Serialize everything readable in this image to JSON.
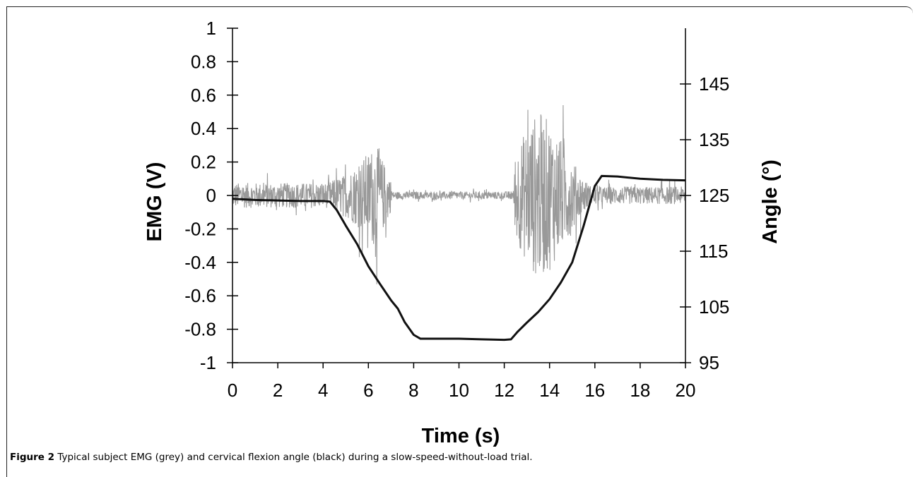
{
  "caption": {
    "label": "Figure 2",
    "text": " Typical subject EMG (grey) and cervical flexion angle (black) during a slow-speed-without-load trial."
  },
  "chart_data": {
    "type": "line",
    "title": "",
    "xlabel": "Time (s)",
    "ylabel": "EMG (V)",
    "y2label": "Angle (°)",
    "xlim": [
      0,
      20
    ],
    "ylim": [
      -1,
      1
    ],
    "y2lim": [
      95,
      155
    ],
    "x_ticks": [
      0,
      2,
      4,
      6,
      8,
      10,
      12,
      14,
      16,
      18,
      20
    ],
    "y_ticks": [
      -1,
      -0.8,
      -0.6,
      -0.4,
      -0.2,
      0,
      0.2,
      0.4,
      0.6,
      0.8,
      1
    ],
    "y_tick_labels": [
      "-1",
      "-0.8",
      "-0.6",
      "-0.4",
      "-0.2",
      "0",
      "0.2",
      "0.4",
      "0.6",
      "0.8",
      "1"
    ],
    "y2_ticks": [
      95,
      105,
      115,
      125,
      135,
      145
    ],
    "grid": false,
    "legend": "none",
    "series": [
      {
        "axis": "left",
        "color": "#999999",
        "style": "raw-signal",
        "envelope": {
          "x": [
            0,
            4.2,
            4.5,
            5.0,
            5.5,
            6.0,
            6.3,
            6.6,
            6.9,
            7.0,
            7.1,
            12.0,
            12.4,
            12.5,
            13.0,
            13.5,
            14.0,
            14.5,
            15.0,
            15.3,
            15.8,
            16.3,
            20
          ],
          "amp": [
            0.1,
            0.1,
            0.13,
            0.17,
            0.25,
            0.35,
            0.42,
            0.3,
            0.18,
            0.12,
            0.03,
            0.03,
            0.04,
            0.35,
            0.55,
            0.68,
            0.6,
            0.45,
            0.3,
            0.18,
            0.08,
            0.07,
            0.07
          ]
        }
      },
      {
        "axis": "right",
        "color": "#111111",
        "x": [
          0,
          1,
          2,
          3,
          4,
          4.3,
          4.6,
          5.0,
          5.5,
          6.0,
          6.5,
          7.0,
          7.3,
          7.6,
          8.0,
          8.3,
          9.0,
          10.0,
          11.0,
          12.0,
          12.3,
          12.6,
          13.0,
          13.5,
          14.0,
          14.5,
          15.0,
          15.5,
          16.0,
          16.3,
          17.0,
          18.0,
          19.0,
          20.0
        ],
        "y": [
          124.4,
          124.2,
          124.1,
          124.0,
          124.0,
          123.9,
          122.4,
          119.6,
          116.3,
          112.3,
          109.2,
          106.2,
          104.7,
          102.3,
          100.0,
          99.3,
          99.3,
          99.3,
          99.2,
          99.1,
          99.2,
          100.6,
          102.2,
          104.1,
          106.4,
          109.4,
          113.0,
          119.5,
          126.7,
          128.5,
          128.4,
          128.0,
          127.8,
          127.7
        ]
      }
    ]
  }
}
